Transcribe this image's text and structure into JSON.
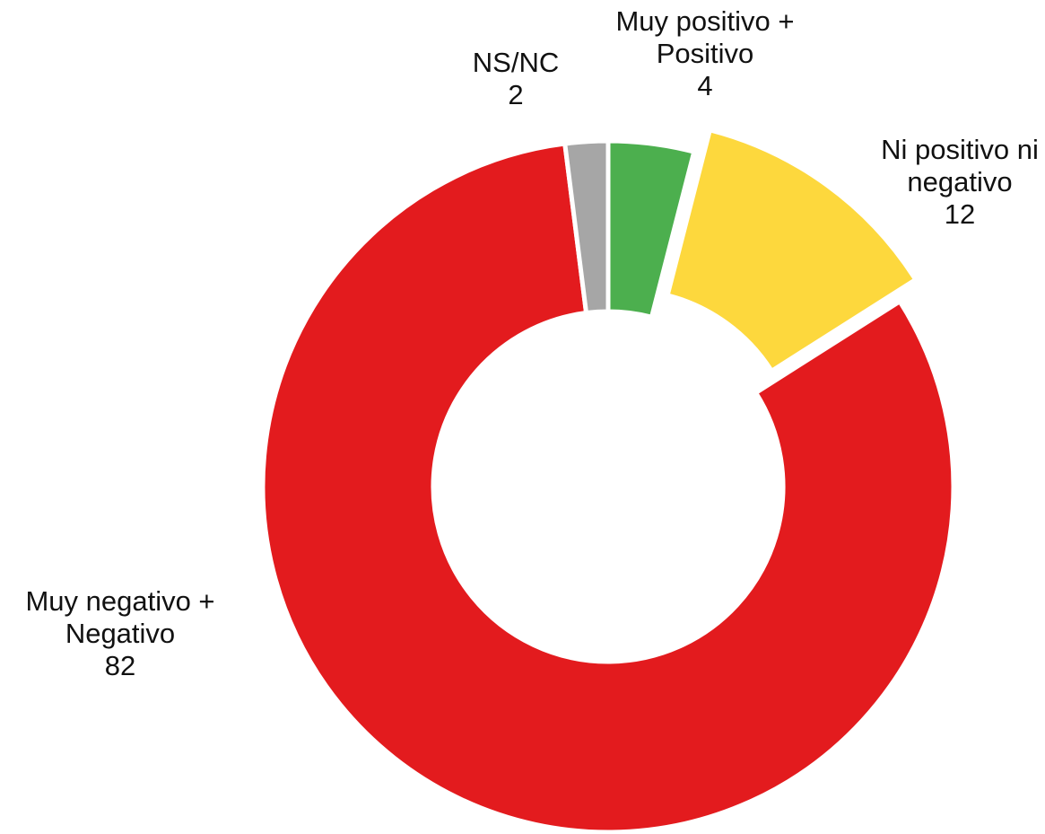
{
  "chart_data": {
    "type": "pie",
    "variant": "donut",
    "title": "",
    "slices": [
      {
        "label_lines": [
          "Muy positivo +",
          "Positivo"
        ],
        "value": 4,
        "value_text": "4",
        "color": "#4caf4e"
      },
      {
        "label_lines": [
          "Ni positivo ni",
          "negativo"
        ],
        "value": 12,
        "value_text": "12",
        "color": "#fdd83d",
        "exploded": true
      },
      {
        "label_lines": [
          "Muy negativo +",
          "Negativo"
        ],
        "value": 82,
        "value_text": "82",
        "color": "#e31b1e"
      },
      {
        "label_lines": [
          "NS/NC"
        ],
        "value": 2,
        "value_text": "2",
        "color": "#a6a6a6"
      }
    ],
    "start_angle": "12 o'clock",
    "direction": "clockwise",
    "legend": "none"
  }
}
